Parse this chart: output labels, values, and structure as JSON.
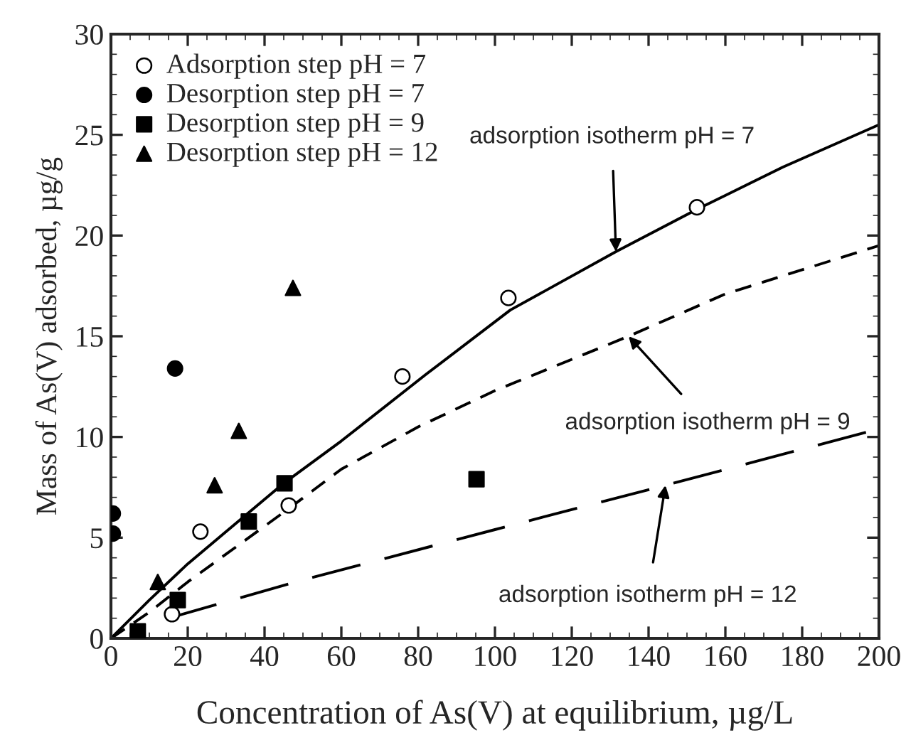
{
  "chart_data": {
    "type": "scatter",
    "xlabel": "Concentration of As(V) at equilibrium, µg/L",
    "ylabel": "Mass of As(V) adsorbed, µg/g",
    "xlim": [
      0,
      200
    ],
    "xticks": [
      0,
      20,
      40,
      60,
      80,
      100,
      120,
      140,
      160,
      180,
      200
    ],
    "ylim": [
      0,
      30
    ],
    "yticks": [
      0,
      5,
      10,
      15,
      20,
      25,
      30
    ],
    "grid": false,
    "legend": "top left",
    "series": [
      {
        "name": "Adsorption step pH = 7",
        "marker": "circle",
        "color": "#ffffff",
        "x": [
          15.9,
          23.3,
          46.3,
          75.9,
          103.5,
          152.6
        ],
        "values": [
          1.2,
          5.3,
          6.6,
          13.0,
          16.9,
          21.4
        ]
      },
      {
        "name": "Desorption step pH = 7",
        "marker": "circle",
        "color": "#000000",
        "x": [
          0.5,
          0.5,
          16.7
        ],
        "values": [
          6.2,
          5.2,
          13.4
        ]
      },
      {
        "name": "Desorption step pH = 9",
        "marker": "square",
        "color": "#000000",
        "x": [
          7.0,
          17.4,
          35.9,
          45.2,
          95.2
        ],
        "values": [
          0.35,
          1.9,
          5.8,
          7.7,
          7.9
        ]
      },
      {
        "name": "Desorption step pH = 12",
        "marker": "triangle",
        "color": "#000000",
        "x": [
          12.2,
          27.0,
          33.3,
          47.4
        ],
        "values": [
          2.8,
          7.6,
          10.3,
          17.4
        ]
      },
      {
        "type": "line",
        "line_style": "solid",
        "color": "#000000",
        "x": [
          0,
          10,
          20,
          30,
          45,
          60,
          82,
          104,
          131.5,
          152.6,
          175,
          200
        ],
        "values": [
          0,
          1.9,
          3.7,
          5.3,
          7.7,
          9.8,
          13.1,
          16.3,
          19.2,
          21.3,
          23.4,
          25.5
        ]
      },
      {
        "type": "line",
        "line_style": "dashed",
        "color": "#000000",
        "x": [
          0,
          10,
          20,
          46,
          60,
          80,
          100,
          134.8,
          160,
          200
        ],
        "values": [
          0,
          1.3,
          2.8,
          6.4,
          8.4,
          10.5,
          12.3,
          15.0,
          17.1,
          19.5
        ]
      },
      {
        "type": "line",
        "line_style": "dashed",
        "color": "#000000",
        "x": [
          15,
          50,
          100,
          144.4,
          200
        ],
        "values": [
          1.0,
          2.9,
          5.4,
          7.6,
          10.4
        ]
      }
    ],
    "annotations": [
      {
        "text": "adsorption isotherm pH = 7",
        "x": 131.5,
        "y": 19.2
      },
      {
        "text": "adsorption isotherm pH = 9",
        "x": 134.8,
        "y": 15.0
      },
      {
        "text": "adsorption isotherm pH = 12",
        "x": 144.4,
        "y": 7.6
      }
    ]
  }
}
